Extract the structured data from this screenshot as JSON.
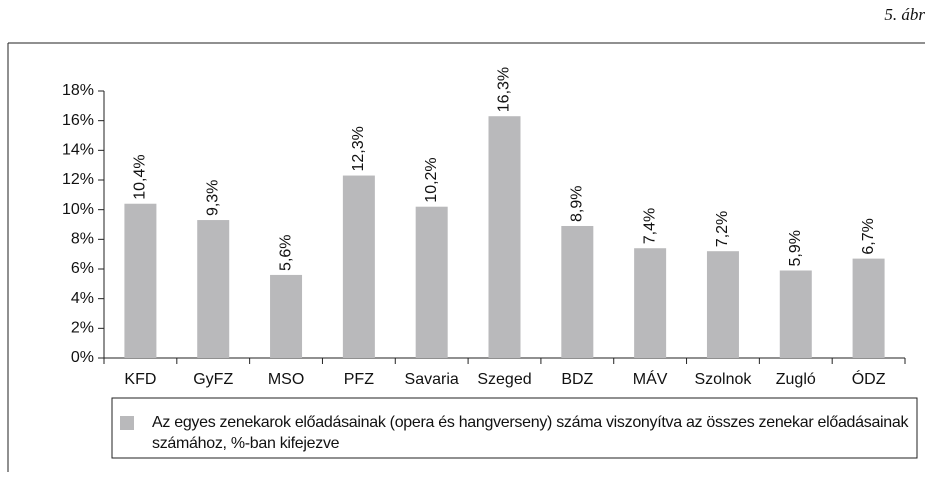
{
  "figure_label": "5. ábr",
  "chart_data": {
    "type": "bar",
    "categories": [
      "KFD",
      "GyFZ",
      "MSO",
      "PFZ",
      "Savaria",
      "Szeged",
      "BDZ",
      "MÁV",
      "Szolnok",
      "Zugló",
      "ÓDZ"
    ],
    "series": [
      {
        "name": "Az egyes zenekarok előadásainak (opera és hangverseny) száma viszonyítva az összes zenekar előadásainak számához, %-ban kifejezve",
        "color": "#b9b9bb",
        "values": [
          10.4,
          9.3,
          5.6,
          12.3,
          10.2,
          16.3,
          8.9,
          7.4,
          7.2,
          5.9,
          6.7
        ],
        "value_labels": [
          "10,4%",
          "9,3%",
          "5,6%",
          "12,3%",
          "10,2%",
          "16,3%",
          "8,9%",
          "7,4%",
          "7,2%",
          "5,9%",
          "6,7%"
        ]
      }
    ],
    "ylim": [
      0,
      18
    ],
    "yticks": [
      {
        "value": 0,
        "label": "0%"
      },
      {
        "value": 2,
        "label": "2%"
      },
      {
        "value": 4,
        "label": "4%"
      },
      {
        "value": 6,
        "label": "6%"
      },
      {
        "value": 8,
        "label": "8%"
      },
      {
        "value": 10,
        "label": "10%"
      },
      {
        "value": 12,
        "label": "12%"
      },
      {
        "value": 14,
        "label": "14%"
      },
      {
        "value": 16,
        "label": "16%"
      },
      {
        "value": 18,
        "label": "18%"
      }
    ],
    "grid": false,
    "legend": "bottom"
  }
}
